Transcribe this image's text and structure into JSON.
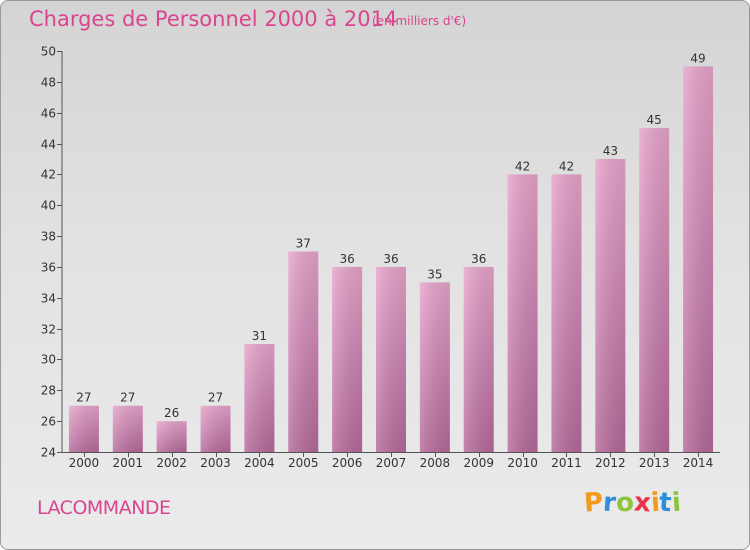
{
  "title": "Charges de Personnel 2000 à 2014",
  "subtitle": "(en milliers d'€)",
  "place": "LACOMMANDE",
  "logo": {
    "letters": [
      "P",
      "r",
      "o",
      "x",
      "i",
      "t",
      "i"
    ],
    "colors": [
      "#f39a1c",
      "#2f8fd6",
      "#8cc43f",
      "#e8334a",
      "#f39a1c",
      "#2f8fd6",
      "#8cc43f"
    ]
  },
  "colors": {
    "bar_top": "#e6a3cb",
    "bar_bottom": "#b5699a",
    "text": "#333333",
    "accent": "#d9458f"
  },
  "chart_data": {
    "type": "bar",
    "categories": [
      "2000",
      "2001",
      "2002",
      "2003",
      "2004",
      "2005",
      "2006",
      "2007",
      "2008",
      "2009",
      "2010",
      "2011",
      "2012",
      "2013",
      "2014"
    ],
    "values": [
      27,
      27,
      26,
      27,
      31,
      37,
      36,
      36,
      35,
      36,
      42,
      42,
      43,
      45,
      49
    ],
    "data_labels": [
      "27",
      "27",
      "26",
      "27",
      "31",
      "37",
      "36",
      "36",
      "35",
      "36",
      "42",
      "42",
      "43",
      "45",
      "49"
    ],
    "ylim": [
      24,
      50
    ],
    "yticks": [
      24,
      26,
      28,
      30,
      32,
      34,
      36,
      38,
      40,
      42,
      44,
      46,
      48,
      50
    ],
    "grid": false,
    "legend": "none"
  }
}
